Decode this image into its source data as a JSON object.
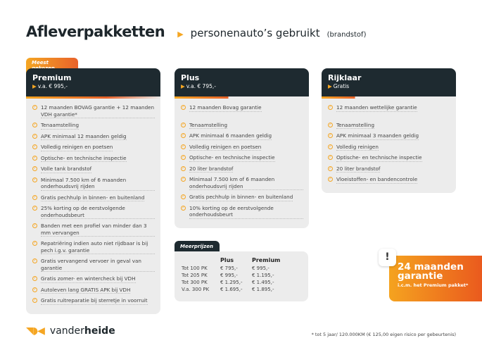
{
  "header": {
    "title": "Afleverpakketten",
    "subtitle": "personenauto’s gebruikt",
    "subtitle_small": "(brandstof)"
  },
  "badge": "Meest gekozen",
  "packages": [
    {
      "name": "Premium",
      "price": "v.a. € 995,-",
      "items": [
        "12 maanden BOVAG garantie + 12 maanden VDH garantie*",
        "Tenaamstelling",
        "APK minimaal 12 maanden geldig",
        "Volledig reinigen en poetsen",
        "Optische- en technische inspectie",
        "Volle tank brandstof",
        "Minimaal 7.500 km of 6 maanden onderhoudsvrij rijden",
        "Gratis pechhulp in binnen- en buitenland",
        "25% korting op de eerstvolgende onderhoudsbeurt",
        "Banden met een profiel van minder dan 3 mm vervangen",
        "Repatriëring indien auto niet rijdbaar is bij pech i.g.v. garantie",
        "Gratis vervangend vervoer in geval van garantie",
        "Gratis zomer- en wintercheck bij VDH",
        "Autoleven lang GRATIS APK bij VDH",
        "Gratis ruitreparatie bij sterretje in voorruit"
      ]
    },
    {
      "name": "Plus",
      "price": "v.a. € 795,-",
      "items": [
        "12 maanden Bovag garantie",
        "Tenaamstelling",
        "APK minimaal 6 maanden geldig",
        "Volledig reinigen en poetsen",
        "Optische- en technische inspectie",
        "20 liter brandstof",
        "Minimaal 7.500 km of 6 maanden onderhoudsvrij rijden",
        "Gratis pechhulp in binnen- en buitenland",
        "10% korting op de eerstvolgende onderhoudsbeurt"
      ]
    },
    {
      "name": "Rijklaar",
      "price": "Gratis",
      "items": [
        "12 maanden wettelijke garantie",
        "Tenaamstelling",
        "APK minimaal 3 maanden geldig",
        "Volledig reinigen",
        "Optische- en technische inspectie",
        "20 liter brandstof",
        "Vloeistoffen- en bandencontrole"
      ]
    }
  ],
  "surcharges": {
    "title": "Meerprijzen",
    "columns": [
      "",
      "Plus",
      "Premium"
    ],
    "rows": [
      [
        "Tot 100 PK",
        "€ 795,-",
        "€ 995,-"
      ],
      [
        "Tot 205 PK",
        "€ 995,-",
        "€ 1.195,-"
      ],
      [
        "Tot 300 PK",
        "€ 1.295,-",
        "€ 1.495,-"
      ],
      [
        "V.a. 300 PK",
        "€ 1.695,-",
        "€ 1.895,-"
      ]
    ]
  },
  "guarantee": {
    "line1": "24 maanden",
    "line2": "garantie",
    "line3": "i.c.m. het Premium pakket*",
    "icon": "exclamation-icon"
  },
  "brand": {
    "mark": "VDH",
    "name_light": "vander",
    "name_bold": "heide"
  },
  "footnote": "* tot 5 jaar/ 120.000KM (€ 125,00 eigen risico per gebeurtenis)",
  "colors": {
    "dark": "#1e2a30",
    "accent": "#f5a623",
    "orange": "#e8622a",
    "panel": "#ececec"
  }
}
